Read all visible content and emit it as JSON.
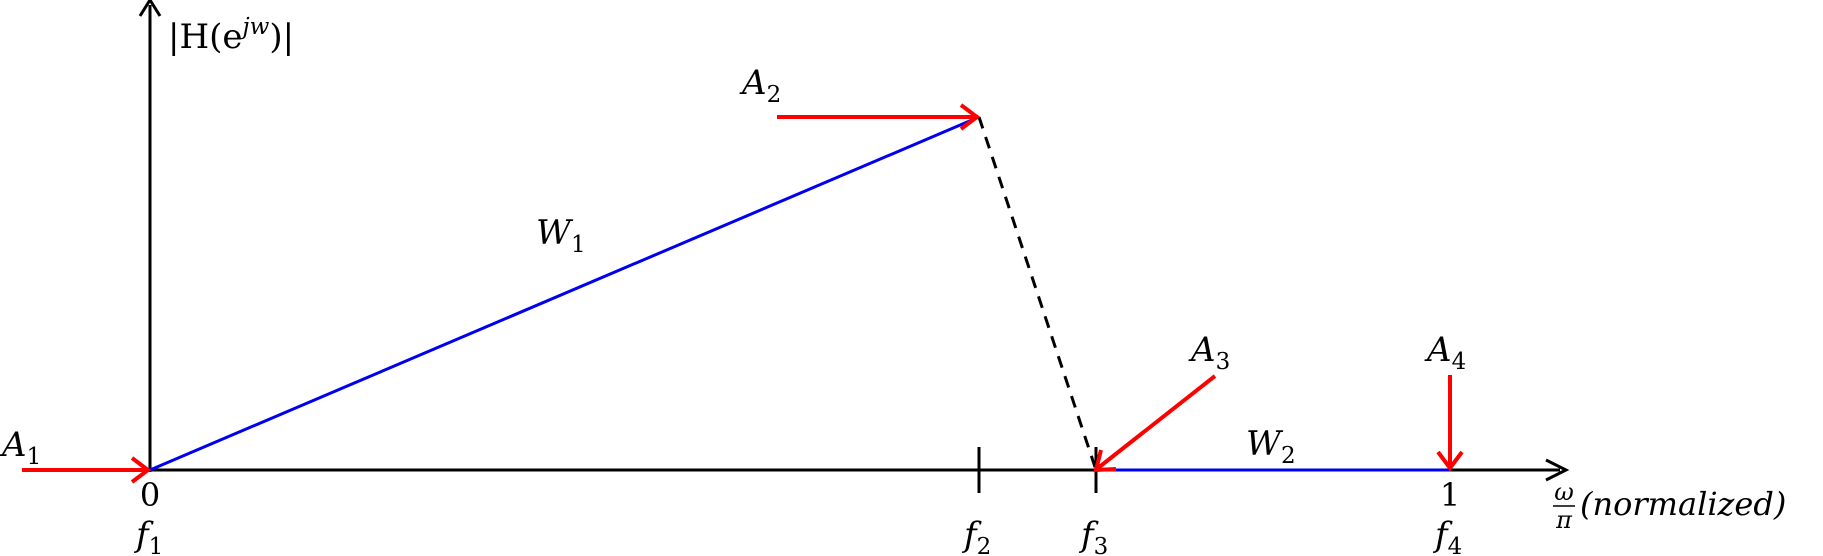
{
  "colors": {
    "axis": "#000000",
    "response": "#0000ee",
    "marker": "#ff0000",
    "transition": "#000000"
  },
  "labels": {
    "y_axis": {
      "main": "|H(e",
      "sup": "jw",
      "tail": ")|"
    },
    "x_axis": {
      "frac_num": "ω",
      "frac_den": "π",
      "suffix": "(normalized)"
    },
    "tick_zero": "0",
    "tick_one": "1",
    "band_weights": [
      {
        "base": "W",
        "sub": "1"
      },
      {
        "base": "W",
        "sub": "2"
      }
    ],
    "frequencies": [
      {
        "base": "f",
        "sub": "1"
      },
      {
        "base": "f",
        "sub": "2"
      },
      {
        "base": "f",
        "sub": "3"
      },
      {
        "base": "f",
        "sub": "4"
      }
    ],
    "amplitudes": [
      {
        "base": "A",
        "sub": "1"
      },
      {
        "base": "A",
        "sub": "2"
      },
      {
        "base": "A",
        "sub": "3"
      },
      {
        "base": "A",
        "sub": "4"
      }
    ]
  }
}
